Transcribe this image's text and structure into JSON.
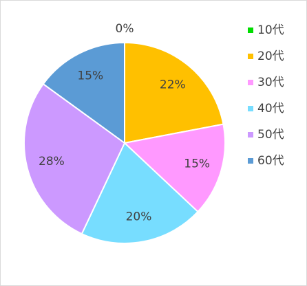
{
  "chart_data": {
    "type": "pie",
    "categories": [
      "10代",
      "20代",
      "30代",
      "40代",
      "50代",
      "60代"
    ],
    "values": [
      0,
      22,
      15,
      20,
      28,
      15
    ],
    "value_labels": [
      "0%",
      "22%",
      "15%",
      "20%",
      "28%",
      "15%"
    ],
    "colors": [
      "#00dd00",
      "#ffc000",
      "#ff99ff",
      "#77ddff",
      "#cc99ff",
      "#5b9bd5"
    ],
    "legend": "right"
  }
}
